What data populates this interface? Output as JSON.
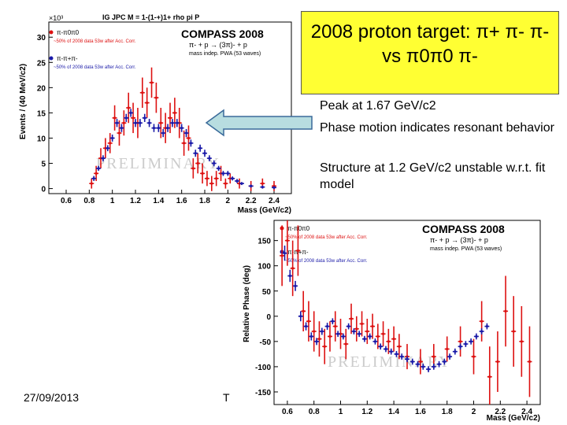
{
  "slide": {
    "title_line1": "2008 proton target:  π+ π- π-",
    "title_line2": "vs π0π0 π-",
    "note1": "Peak at 1.67 GeV/c2",
    "note2": "Phase motion indicates resonant behavior",
    "note3": "Structure at 1.2 GeV/c2 unstable w.r.t. fit model",
    "footer_date": "27/09/2013",
    "footer_t": "T",
    "colors": {
      "title_bg": "#ffff33",
      "red": "#dd1111",
      "blue": "#1a1aa8",
      "arrow_fill": "#b8dde0"
    }
  },
  "chart_data": [
    {
      "type": "scatter",
      "header": "IG JPC M = 1-(1-+)1+ rho pi P",
      "brand": "COMPASS 2008",
      "reaction": "π- + p → (3π)- + p",
      "method": "mass indep. PWA (53 waves)",
      "watermark": "PRELIMINARY",
      "xlabel": "Mass (GeV/c2)",
      "ylabel": "Events / (40 MeV/c2)",
      "yexp": "×10³",
      "xlim": [
        0.45,
        2.55
      ],
      "ylim": [
        -1,
        33
      ],
      "xticks": [
        "0.6",
        "0.8",
        "1",
        "1.2",
        "1.4",
        "1.6",
        "1.8",
        "2",
        "2.2",
        "2.4"
      ],
      "yticks": [
        "0",
        "5",
        "10",
        "15",
        "20",
        "25",
        "30"
      ],
      "legend_position": "top-left",
      "series": [
        {
          "name": "π-π0π0",
          "note": "~50% of 2008 data 53w after Acc. Corr.",
          "color": "#dd1111",
          "x": [
            0.82,
            0.86,
            0.9,
            0.94,
            0.98,
            1.02,
            1.06,
            1.1,
            1.14,
            1.18,
            1.22,
            1.26,
            1.3,
            1.34,
            1.38,
            1.42,
            1.46,
            1.5,
            1.54,
            1.58,
            1.62,
            1.66,
            1.7,
            1.74,
            1.78,
            1.82,
            1.86,
            1.9,
            1.94,
            1.98,
            2.02,
            2.1,
            2.2,
            2.3,
            2.4
          ],
          "y": [
            1,
            3,
            6,
            8,
            9,
            14,
            11,
            13,
            16,
            14,
            13,
            19,
            17,
            21,
            18,
            13,
            12,
            14,
            15,
            13,
            9,
            10,
            4,
            5,
            3,
            2,
            1,
            2,
            3,
            1,
            2,
            1,
            0.5,
            1,
            0.5
          ],
          "err": [
            1,
            1.5,
            2,
            2,
            2,
            2.5,
            2.5,
            2.5,
            3,
            3,
            3,
            3,
            3,
            3,
            3,
            3,
            3,
            3,
            3,
            3,
            2.5,
            2.5,
            2,
            2,
            2,
            1.5,
            1.5,
            1.5,
            1.5,
            1,
            1,
            1,
            1,
            1,
            1
          ]
        },
        {
          "name": "π-π+π-",
          "note": "~50% of 2008 data 53w after Acc. Corr.",
          "color": "#1a1aa8",
          "x": [
            0.84,
            0.88,
            0.92,
            0.96,
            1.0,
            1.04,
            1.08,
            1.12,
            1.16,
            1.2,
            1.24,
            1.28,
            1.32,
            1.36,
            1.4,
            1.44,
            1.48,
            1.52,
            1.56,
            1.6,
            1.64,
            1.68,
            1.72,
            1.76,
            1.8,
            1.84,
            1.88,
            1.92,
            1.96,
            2.0,
            2.04,
            2.08,
            2.12,
            2.2,
            2.3,
            2.4
          ],
          "y": [
            2,
            4,
            6,
            8,
            10,
            13,
            12,
            14,
            15,
            13,
            13,
            14,
            13,
            12,
            12,
            11,
            12,
            13,
            13,
            12,
            11,
            9,
            7,
            8,
            7,
            6,
            5,
            4,
            3,
            3,
            2,
            1.5,
            1,
            0.5,
            0.3,
            0.2
          ],
          "err": [
            0.5,
            0.5,
            0.6,
            0.6,
            0.7,
            0.8,
            0.8,
            0.8,
            0.8,
            0.8,
            0.8,
            0.8,
            0.8,
            0.8,
            0.8,
            0.8,
            0.8,
            0.8,
            0.8,
            0.8,
            0.8,
            0.7,
            0.7,
            0.7,
            0.7,
            0.6,
            0.6,
            0.5,
            0.5,
            0.5,
            0.4,
            0.4,
            0.3,
            0.3,
            0.3,
            0.3
          ]
        }
      ]
    },
    {
      "type": "scatter",
      "brand": "COMPASS 2008",
      "reaction": "π- + p → (3π)- + p",
      "method": "mass indep. PWA (53 waves)",
      "watermark": "PRELIMINARY",
      "xlabel": "Mass (GeV/c2)",
      "ylabel": "Relative Phase (deg)",
      "xlim": [
        0.5,
        2.5
      ],
      "ylim": [
        -175,
        190
      ],
      "xticks": [
        "0.6",
        "0.8",
        "1",
        "1.2",
        "1.4",
        "1.6",
        "1.8",
        "2",
        "2.2",
        "2.4"
      ],
      "yticks": [
        "-150",
        "-100",
        "-50",
        "0",
        "50",
        "100",
        "150"
      ],
      "legend_position": "top-left",
      "series": [
        {
          "name": "π-π0π0",
          "note": "~50% of 2008 data 53w after Acc. Corr.",
          "color": "#dd1111",
          "x": [
            0.56,
            0.6,
            0.64,
            0.68,
            0.72,
            0.76,
            0.8,
            0.84,
            0.88,
            0.92,
            0.96,
            1.0,
            1.04,
            1.08,
            1.12,
            1.16,
            1.2,
            1.24,
            1.28,
            1.32,
            1.36,
            1.4,
            1.44,
            1.5,
            1.6,
            1.7,
            1.8,
            1.9,
            2.0,
            2.06,
            2.12,
            2.18,
            2.24,
            2.3,
            2.36,
            2.42
          ],
          "y": [
            120,
            150,
            95,
            130,
            10,
            -10,
            -30,
            -45,
            -60,
            -40,
            -20,
            -35,
            -55,
            -5,
            -25,
            -15,
            -30,
            -20,
            -40,
            -35,
            -50,
            -45,
            -60,
            -80,
            -90,
            -80,
            -65,
            -50,
            -80,
            -10,
            -120,
            -90,
            10,
            -30,
            -50,
            -90
          ],
          "err": [
            60,
            50,
            55,
            50,
            40,
            40,
            40,
            35,
            35,
            30,
            30,
            30,
            30,
            30,
            25,
            25,
            25,
            25,
            25,
            25,
            25,
            25,
            25,
            25,
            25,
            25,
            25,
            30,
            35,
            40,
            60,
            60,
            70,
            70,
            70,
            70
          ]
        },
        {
          "name": "π-π+π-",
          "note": "~50% of 2008 data 53w after Acc. Corr.",
          "color": "#1a1aa8",
          "x": [
            0.58,
            0.62,
            0.66,
            0.7,
            0.74,
            0.78,
            0.82,
            0.86,
            0.9,
            0.94,
            0.98,
            1.02,
            1.06,
            1.1,
            1.14,
            1.18,
            1.22,
            1.26,
            1.3,
            1.34,
            1.38,
            1.42,
            1.46,
            1.5,
            1.54,
            1.58,
            1.62,
            1.66,
            1.7,
            1.74,
            1.78,
            1.82,
            1.86,
            1.9,
            1.94,
            1.98,
            2.02,
            2.06,
            2.1
          ],
          "y": [
            125,
            80,
            60,
            0,
            -20,
            -40,
            -50,
            -30,
            -20,
            -10,
            -35,
            -40,
            -20,
            -30,
            -35,
            -45,
            -40,
            -50,
            -60,
            -65,
            -70,
            -75,
            -80,
            -85,
            -90,
            -95,
            -100,
            -105,
            -100,
            -95,
            -90,
            -80,
            -70,
            -60,
            -55,
            -50,
            -40,
            -30,
            -20
          ],
          "err": [
            15,
            12,
            10,
            10,
            8,
            8,
            7,
            7,
            7,
            6,
            6,
            6,
            6,
            6,
            6,
            6,
            6,
            6,
            6,
            6,
            6,
            6,
            6,
            6,
            6,
            6,
            6,
            6,
            6,
            6,
            6,
            6,
            6,
            6,
            6,
            6,
            6,
            6,
            6
          ]
        }
      ]
    }
  ]
}
